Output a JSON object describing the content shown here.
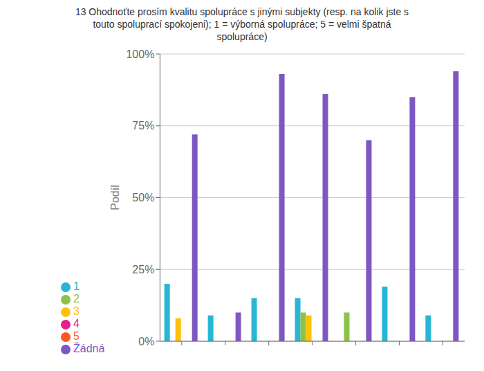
{
  "chart_data": {
    "type": "bar",
    "title": "13 Ohodnoťte prosím kvalitu spolupráce s jinými subjekty (resp. na kolik jste s\ntouto spoluprací spokojeni); 1 = výborná spolupráce; 5 = velmi špatná\nspolupráce)",
    "y_label": "Podíl",
    "categories": [
      null,
      null,
      null,
      null,
      null,
      null,
      null
    ],
    "series": [
      {
        "name": "1",
        "color": "#29b6d4",
        "values": [
          20,
          9,
          15,
          15,
          0,
          19,
          9
        ]
      },
      {
        "name": "2",
        "color": "#8bc34a",
        "values": [
          0,
          0,
          0,
          10,
          10,
          0,
          0
        ]
      },
      {
        "name": "3",
        "color": "#ffc107",
        "values": [
          8,
          0,
          0,
          9,
          0,
          0,
          0
        ]
      },
      {
        "name": "4",
        "color": "#e91e8c",
        "values": [
          0,
          0,
          0,
          0,
          0,
          0,
          0
        ]
      },
      {
        "name": "5",
        "color": "#ff5722",
        "values": [
          0,
          0,
          0,
          0,
          0,
          0,
          0
        ]
      },
      {
        "name": "Žádná",
        "color": "#7e57c2",
        "values": [
          72,
          10,
          93,
          86,
          70,
          85,
          94
        ]
      }
    ],
    "ylim": [
      0,
      100
    ],
    "yticks": [
      {
        "value": 0,
        "label": "0%"
      },
      {
        "value": 25,
        "label": "25%"
      },
      {
        "value": 50,
        "label": "50%"
      },
      {
        "value": 75,
        "label": "75%"
      },
      {
        "value": 100,
        "label": "100%"
      }
    ],
    "grid": true,
    "legend": "bottom"
  }
}
